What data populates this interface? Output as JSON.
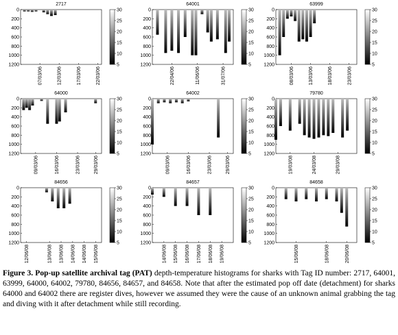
{
  "chart_data": [
    {
      "type": "bar",
      "title": "2717",
      "xlim": [
        "2006-03-02",
        "2006-03-23"
      ],
      "xticks": [
        {
          "value": "2006-03-07",
          "label": "07/03/06"
        },
        {
          "value": "2006-03-12",
          "label": "12/03/06"
        },
        {
          "value": "2006-03-17",
          "label": "17/03/06"
        },
        {
          "value": "2006-03-22",
          "label": "22/03/06"
        }
      ],
      "ylim": [
        1200,
        0
      ],
      "yticks": [
        0,
        200,
        400,
        600,
        800,
        1000,
        1200
      ],
      "x": [
        "2006-03-03",
        "2006-03-04",
        "2006-03-05",
        "2006-03-06",
        "2006-03-08",
        "2006-03-09",
        "2006-03-10",
        "2006-03-11"
      ],
      "values": [
        40,
        40,
        50,
        40,
        60,
        100,
        140,
        120
      ]
    },
    {
      "type": "bar",
      "title": "64001",
      "xlim": [
        "2006-03-15",
        "2006-08-20"
      ],
      "xticks": [
        {
          "value": "2006-04-22",
          "label": "22/04/06"
        },
        {
          "value": "2006-06-11",
          "label": "11/06/06"
        },
        {
          "value": "2006-07-31",
          "label": "31/07/06"
        }
      ],
      "ylim": [
        1200,
        0
      ],
      "yticks": [
        0,
        200,
        400,
        600,
        800,
        1000,
        1200
      ],
      "x": [
        "2006-03-25",
        "2006-04-10",
        "2006-04-22",
        "2006-05-05",
        "2006-05-18",
        "2006-06-01",
        "2006-06-08",
        "2006-06-20",
        "2006-07-01",
        "2006-07-08",
        "2006-07-20",
        "2006-08-05",
        "2006-08-12"
      ],
      "values": [
        550,
        950,
        900,
        950,
        600,
        1000,
        1000,
        100,
        500,
        700,
        650,
        950,
        700
      ]
    },
    {
      "type": "bar",
      "title": "63999",
      "xlim": [
        "2006-03-04",
        "2006-03-25"
      ],
      "xticks": [
        {
          "value": "2006-03-08",
          "label": "08/03/06"
        },
        {
          "value": "2006-03-13",
          "label": "13/03/06"
        },
        {
          "value": "2006-03-18",
          "label": "18/03/06"
        },
        {
          "value": "2006-03-23",
          "label": "23/03/06"
        }
      ],
      "ylim": [
        1200,
        0
      ],
      "yticks": [
        0,
        200,
        400,
        600,
        800,
        1000,
        1200
      ],
      "x": [
        "2006-03-05",
        "2006-03-06",
        "2006-03-07",
        "2006-03-08",
        "2006-03-09",
        "2006-03-10",
        "2006-03-11",
        "2006-03-12",
        "2006-03-13",
        "2006-03-14"
      ],
      "values": [
        1000,
        600,
        200,
        150,
        250,
        700,
        650,
        700,
        600,
        300
      ]
    },
    {
      "type": "bar",
      "title": "64000",
      "xlim": [
        "2006-03-04",
        "2006-03-31"
      ],
      "xticks": [
        {
          "value": "2006-03-09",
          "label": "09/03/06"
        },
        {
          "value": "2006-03-16",
          "label": "16/03/06"
        },
        {
          "value": "2006-03-23",
          "label": "23/03/06"
        },
        {
          "value": "2006-03-29",
          "label": "29/03/06"
        }
      ],
      "ylim": [
        1200,
        0
      ],
      "yticks": [
        0,
        200,
        400,
        600,
        800,
        1000,
        1200
      ],
      "x": [
        "2006-03-05",
        "2006-03-06",
        "2006-03-07",
        "2006-03-08",
        "2006-03-11",
        "2006-03-13",
        "2006-03-16",
        "2006-03-17",
        "2006-03-19",
        "2006-03-29"
      ],
      "values": [
        250,
        200,
        250,
        150,
        50,
        550,
        550,
        500,
        300,
        100
      ]
    },
    {
      "type": "bar",
      "title": "64002",
      "xlim": [
        "2006-03-04",
        "2006-03-31"
      ],
      "xticks": [
        {
          "value": "2006-03-09",
          "label": "09/03/06"
        },
        {
          "value": "2006-03-16",
          "label": "16/03/06"
        },
        {
          "value": "2006-03-23",
          "label": "23/03/06"
        },
        {
          "value": "2006-03-29",
          "label": "29/03/06"
        }
      ],
      "ylim": [
        1200,
        0
      ],
      "yticks": [
        0,
        200,
        400,
        600,
        800,
        1000,
        1200
      ],
      "x": [
        "2006-03-04",
        "2006-03-06",
        "2006-03-08",
        "2006-03-10",
        "2006-03-12",
        "2006-03-14",
        "2006-03-16",
        "2006-03-26"
      ],
      "values": [
        1000,
        100,
        80,
        100,
        80,
        100,
        60,
        850
      ]
    },
    {
      "type": "bar",
      "title": "79780",
      "xlim": [
        "2008-03-16",
        "2008-04-02"
      ],
      "xticks": [
        {
          "value": "2008-03-19",
          "label": "19/03/08"
        },
        {
          "value": "2008-03-24",
          "label": "24/03/08"
        },
        {
          "value": "2008-03-29",
          "label": "29/03/08"
        }
      ],
      "ylim": [
        1200,
        0
      ],
      "yticks": [
        0,
        200,
        400,
        600,
        800,
        1000,
        1200
      ],
      "x": [
        "2008-03-16",
        "2008-03-17",
        "2008-03-19",
        "2008-03-21",
        "2008-03-22",
        "2008-03-23",
        "2008-03-24",
        "2008-03-25",
        "2008-03-26",
        "2008-03-27",
        "2008-03-28",
        "2008-03-30",
        "2008-03-31"
      ],
      "values": [
        900,
        600,
        700,
        550,
        800,
        850,
        880,
        850,
        800,
        820,
        750,
        850,
        700
      ]
    },
    {
      "type": "bar",
      "title": "84656",
      "xlim": [
        "2008-06-11T18:00",
        "2008-06-15T06:00"
      ],
      "xticks": [
        {
          "value": "2008-06-12T00:00",
          "label": "12/06/08"
        },
        {
          "value": "2008-06-13T00:00",
          "label": "13/06/08"
        },
        {
          "value": "2008-06-13T12:00",
          "label": "13/06/08"
        },
        {
          "value": "2008-06-14T00:00",
          "label": "14/06/08"
        },
        {
          "value": "2008-06-14T12:00",
          "label": "14/06/08"
        },
        {
          "value": "2008-06-15T00:00",
          "label": "15/06/08"
        }
      ],
      "ylim": [
        1200,
        0
      ],
      "yticks": [
        0,
        200,
        400,
        600,
        800,
        1000,
        1200
      ],
      "x": [
        "2008-06-12T21:00",
        "2008-06-13T03:00",
        "2008-06-13T09:00",
        "2008-06-13T15:00",
        "2008-06-13T21:00"
      ],
      "values": [
        100,
        300,
        450,
        450,
        350
      ]
    },
    {
      "type": "bar",
      "title": "84657",
      "xlim": [
        "2008-06-13",
        "2008-06-20"
      ],
      "xticks": [
        {
          "value": "2008-06-14",
          "label": "14/06/08"
        },
        {
          "value": "2008-06-15",
          "label": "15/06/08"
        },
        {
          "value": "2008-06-16",
          "label": "16/06/08"
        },
        {
          "value": "2008-06-17",
          "label": "17/06/08"
        },
        {
          "value": "2008-06-18",
          "label": "18/06/08"
        },
        {
          "value": "2008-06-19",
          "label": "19/06/08"
        }
      ],
      "ylim": [
        1200,
        0
      ],
      "yticks": [
        0,
        200,
        400,
        600,
        800,
        1000,
        1200
      ],
      "x": [
        "2008-06-13",
        "2008-06-14",
        "2008-06-15",
        "2008-06-16",
        "2008-06-17",
        "2008-06-18"
      ],
      "values": [
        150,
        200,
        400,
        400,
        600,
        600
      ]
    },
    {
      "type": "bar",
      "title": "84658",
      "xlim": [
        "2008-06-13",
        "2008-06-21"
      ],
      "xticks": [
        {
          "value": "2008-06-15",
          "label": "15/06/08"
        },
        {
          "value": "2008-06-18",
          "label": "18/06/08"
        },
        {
          "value": "2008-06-20",
          "label": "20/06/08"
        }
      ],
      "ylim": [
        1200,
        0
      ],
      "yticks": [
        0,
        200,
        400,
        600,
        800,
        1000,
        1200
      ],
      "x": [
        "2008-06-14",
        "2008-06-15",
        "2008-06-16",
        "2008-06-17",
        "2008-06-18",
        "2008-06-19",
        "2008-06-19T12:00",
        "2008-06-20"
      ],
      "values": [
        250,
        300,
        250,
        300,
        250,
        300,
        550,
        850
      ]
    }
  ],
  "colorbar": {
    "lim": [
      5,
      30
    ],
    "ticks": [
      5,
      10,
      15,
      20,
      25,
      30
    ]
  },
  "caption": {
    "label": "Figure 3.",
    "bold": "Pop-up satellite archival tag (PAT)",
    "text": " depth-temperature histograms for sharks with Tag ID number: 2717, 64001, 63999, 64000, 64002, 79780, 84656, 84657, and 84658. Note that after the estimated pop off date (detachment) for sharks 64000 and 64002 there are register dives, however we assumed they were the cause of an unknown animal grabbing the tag and diving with it after detachment while still recording."
  }
}
